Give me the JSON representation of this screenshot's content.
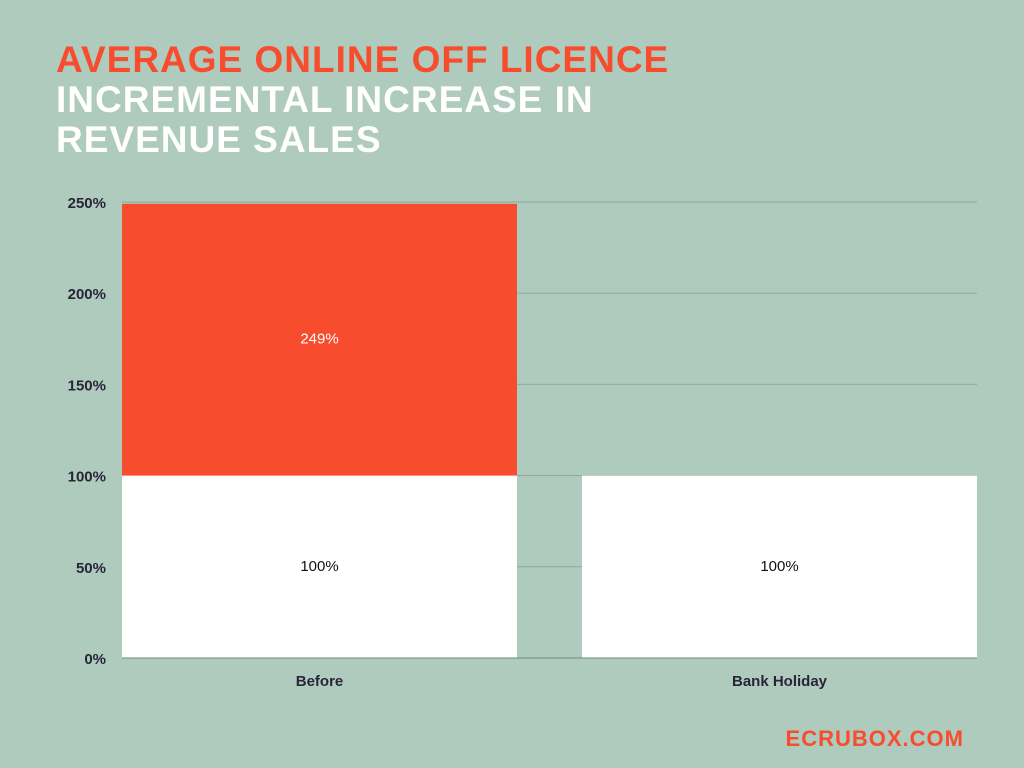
{
  "chart_data": {
    "type": "bar",
    "overlap": true,
    "title": "AVERAGE ONLINE OFF LICENCE",
    "subtitle": "INCREMENTAL INCREASE IN REVENUE SALES",
    "credit": "ECRUBOX.COM",
    "categories": [
      "Before",
      "Bank Holiday"
    ],
    "series": [
      {
        "color": "#f84c2e",
        "values": [
          249,
          null
        ],
        "value_labels": [
          "249%",
          null
        ]
      },
      {
        "color": "#ffffff",
        "values": [
          100,
          100
        ],
        "value_labels": [
          "100%",
          "100%"
        ]
      }
    ],
    "ylim": [
      0,
      250
    ],
    "yticks": [
      {
        "value": 0,
        "label": "0%"
      },
      {
        "value": 50,
        "label": "50%"
      },
      {
        "value": 100,
        "label": "100%"
      },
      {
        "value": 150,
        "label": "150%"
      },
      {
        "value": 200,
        "label": "200%"
      },
      {
        "value": 250,
        "label": "250%"
      }
    ],
    "grid": true
  }
}
